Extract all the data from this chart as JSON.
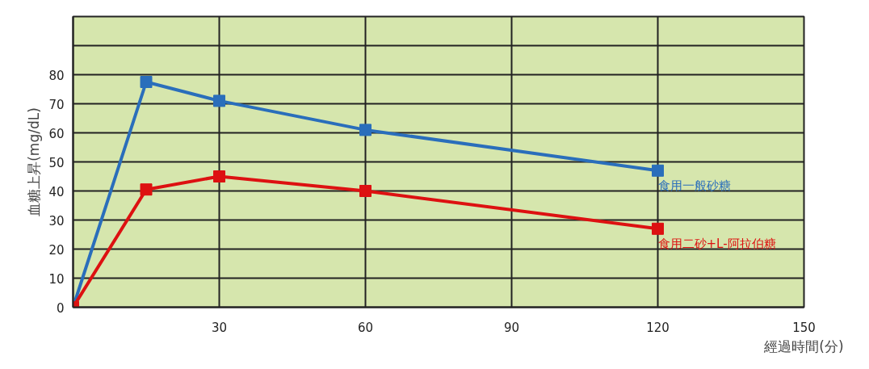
{
  "chart_data": {
    "type": "line",
    "xlabel": "經過時間(分)",
    "ylabel": "血糖上昇(mg/dL)",
    "x": [
      0,
      15,
      30,
      60,
      120
    ],
    "series": [
      {
        "name": "食用一般砂糖",
        "color": "#2a6ebb",
        "values": [
          0,
          77.5,
          71,
          61,
          47
        ]
      },
      {
        "name": "食用二砂+L-阿拉伯糖",
        "color": "#dd1111",
        "values": [
          0,
          40.5,
          45,
          40,
          27
        ]
      }
    ],
    "xlim": [
      0,
      150
    ],
    "xticks": [
      30,
      60,
      90,
      120,
      150
    ],
    "ylim": [
      0,
      100
    ],
    "yticks": [
      {
        "value": 0,
        "label": "0"
      },
      10,
      20,
      30,
      40,
      50,
      60,
      70,
      80,
      {
        "value": 90,
        "label": null
      },
      {
        "value": 100,
        "label": null
      }
    ],
    "grid": true,
    "marker": "square",
    "line_style": "solid"
  }
}
